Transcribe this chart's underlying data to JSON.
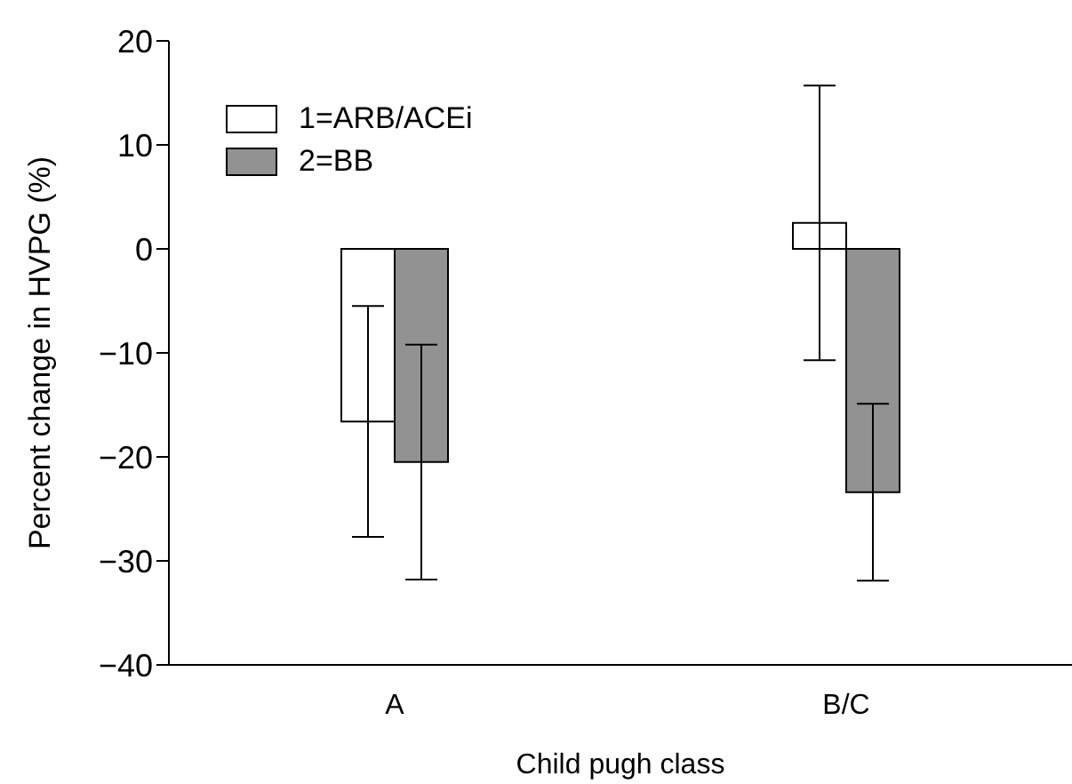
{
  "chart_data": {
    "type": "bar",
    "categories": [
      "A",
      "B/C"
    ],
    "series": [
      {
        "name": "1=ARB/ACEi",
        "color": "#ffffff",
        "values": [
          -16.6,
          2.5
        ],
        "errors": [
          11.1,
          13.2
        ]
      },
      {
        "name": "2=BB",
        "color": "#929292",
        "values": [
          -20.5,
          -23.4
        ],
        "errors": [
          11.3,
          8.5
        ]
      }
    ],
    "xlabel": "Child pugh class",
    "ylabel": "Percent change in HVPG (%)",
    "ylim": [
      -40,
      20
    ],
    "yticks": [
      -40,
      -30,
      -20,
      -10,
      0,
      10,
      20
    ],
    "grid": false,
    "legend": "top left"
  }
}
